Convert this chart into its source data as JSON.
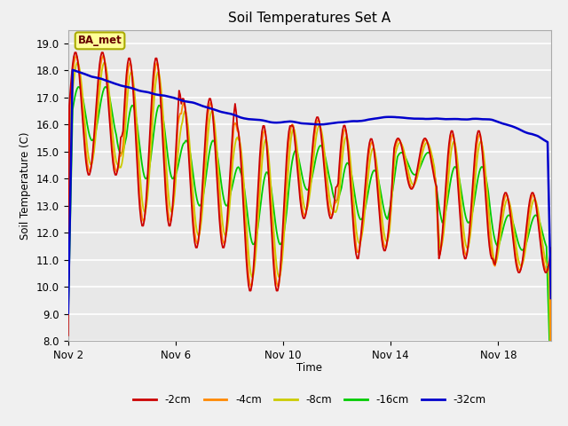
{
  "title": "Soil Temperatures Set A",
  "xlabel": "Time",
  "ylabel": "Soil Temperature (C)",
  "ylim": [
    8.0,
    19.5
  ],
  "yticks": [
    8.0,
    9.0,
    10.0,
    11.0,
    12.0,
    13.0,
    14.0,
    15.0,
    16.0,
    17.0,
    18.0,
    19.0
  ],
  "fig_bg": "#f0f0f0",
  "plot_bg": "#e8e8e8",
  "grid_color": "#ffffff",
  "annotation_text": "BA_met",
  "annotation_bg": "#ffff99",
  "annotation_border": "#aaaa00",
  "colors": {
    "-2cm": "#cc0000",
    "-4cm": "#ff8800",
    "-8cm": "#cccc00",
    "-16cm": "#00cc00",
    "-32cm": "#0000cc"
  },
  "legend_labels": [
    "-2cm",
    "-4cm",
    "-8cm",
    "-16cm",
    "-32cm"
  ],
  "num_points": 432,
  "x_tick_positions": [
    0,
    96,
    192,
    288,
    384
  ],
  "x_tick_labels": [
    "Nov 2",
    "Nov 6",
    "Nov 10",
    "Nov 14",
    "Nov 18"
  ]
}
